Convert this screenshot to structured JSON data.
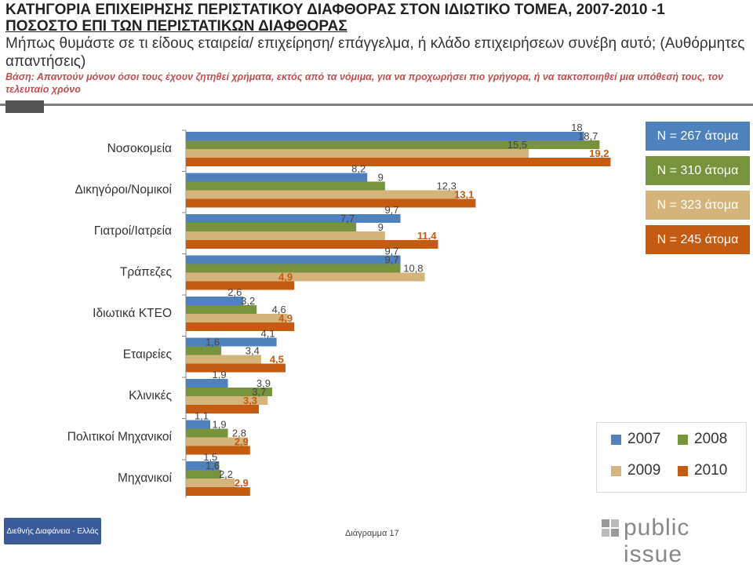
{
  "header": {
    "title_line1": "ΚΑΤΗΓΟΡΙΑ ΕΠΙΧΕΙΡΗΣΗΣ ΠΕΡΙΣΤΑΤΙΚΟΥ ΔΙΑΦΘΟΡΑΣ ΣΤΟΝ ΙΔΙΩΤΙΚΟ ΤΟΜΕΑ, 2007-2010 -1",
    "title_line2": "ΠΟΣΟΣΤΟ ΕΠΙ ΤΩΝ ΠΕΡΙΣΤΑΤΙΚΩΝ ΔΙΑΦΘΟΡΑΣ",
    "subtitle": "Μήπως θυμάστε σε τι είδους εταιρεία/ επιχείρηση/ επάγγελμα, ή κλάδο επιχειρήσεων συνέβη αυτό; (Αυθόρμητες απαντήσεις)",
    "basis": "Βάση: Απαντούν μόνον όσοι τους έχουν ζητηθεί χρήματα, εκτός από τα νόμιμα, για να προχωρήσει πιο γρήγορα, ή να τακτοποιηθεί μια υπόθεσή τους, τον τελευταίο χρόνο"
  },
  "chart_data": {
    "type": "bar",
    "orientation": "horizontal",
    "categories": [
      "Νοσοκομεία",
      "Δικηγόροι/Νομικοί",
      "Γιατροί/Ιατρεία",
      "Τράπεζες",
      "Ιδιωτικά ΚΤΕΟ",
      "Εταιρείες",
      "Κλινικές",
      "Πολιτικοί Μηχανικοί",
      "Μηχανικοί"
    ],
    "series": [
      {
        "name": "2007",
        "color": "#4f81bd",
        "values": [
          18,
          8.2,
          9.7,
          9.7,
          2.6,
          4.1,
          1.9,
          1.1,
          1.5
        ],
        "labels": [
          "18",
          "8,2",
          "9,7",
          "9,7",
          "2,6",
          "4,1",
          "1,9",
          "1,1",
          "1,5"
        ]
      },
      {
        "name": "2008",
        "color": "#77933c",
        "values": [
          18.7,
          9,
          7.7,
          9.7,
          3.2,
          1.6,
          3.9,
          1.9,
          1.6
        ],
        "labels": [
          "18,7",
          "9",
          "7,7",
          "9,7",
          "3,2",
          "1,6",
          "3,9",
          "1,9",
          "1,6"
        ]
      },
      {
        "name": "2009",
        "color": "#d4b47a",
        "values": [
          15.5,
          12.3,
          9,
          10.8,
          4.6,
          3.4,
          3.7,
          2.8,
          2.2
        ],
        "labels": [
          "15,5",
          "12,3",
          "9",
          "10,8",
          "4,6",
          "3,4",
          "3,7",
          "2,8",
          "2,2"
        ]
      },
      {
        "name": "2010",
        "color": "#c55a11",
        "values": [
          19.2,
          13.1,
          11.4,
          4.9,
          4.9,
          4.5,
          3.3,
          2.9,
          2.9
        ],
        "labels": [
          "19,2",
          "13,1",
          "11,4",
          "4,9",
          "4,9",
          "4,5",
          "3,3",
          "2,9",
          "2,9"
        ]
      }
    ],
    "xlim": [
      0,
      20
    ],
    "grid": false,
    "legend": "bottom-right"
  },
  "n_boxes": [
    {
      "label": "N = 267 άτομα",
      "color": "#4f81bd"
    },
    {
      "label": "N = 310 άτομα",
      "color": "#77933c"
    },
    {
      "label": "N = 323 άτομα",
      "color": "#d4b47a"
    },
    {
      "label": "N = 245 άτομα",
      "color": "#c55a11"
    }
  ],
  "legend": {
    "items": [
      {
        "label": "2007",
        "color": "#4f81bd"
      },
      {
        "label": "2008",
        "color": "#77933c"
      },
      {
        "label": "2009",
        "color": "#d4b47a"
      },
      {
        "label": "2010",
        "color": "#c55a11"
      }
    ]
  },
  "footer": {
    "logo_text": "Διεθνής Διαφάνεια - Ελλάς",
    "caption": "Διάγραμμα 17",
    "brand": "public issue"
  }
}
